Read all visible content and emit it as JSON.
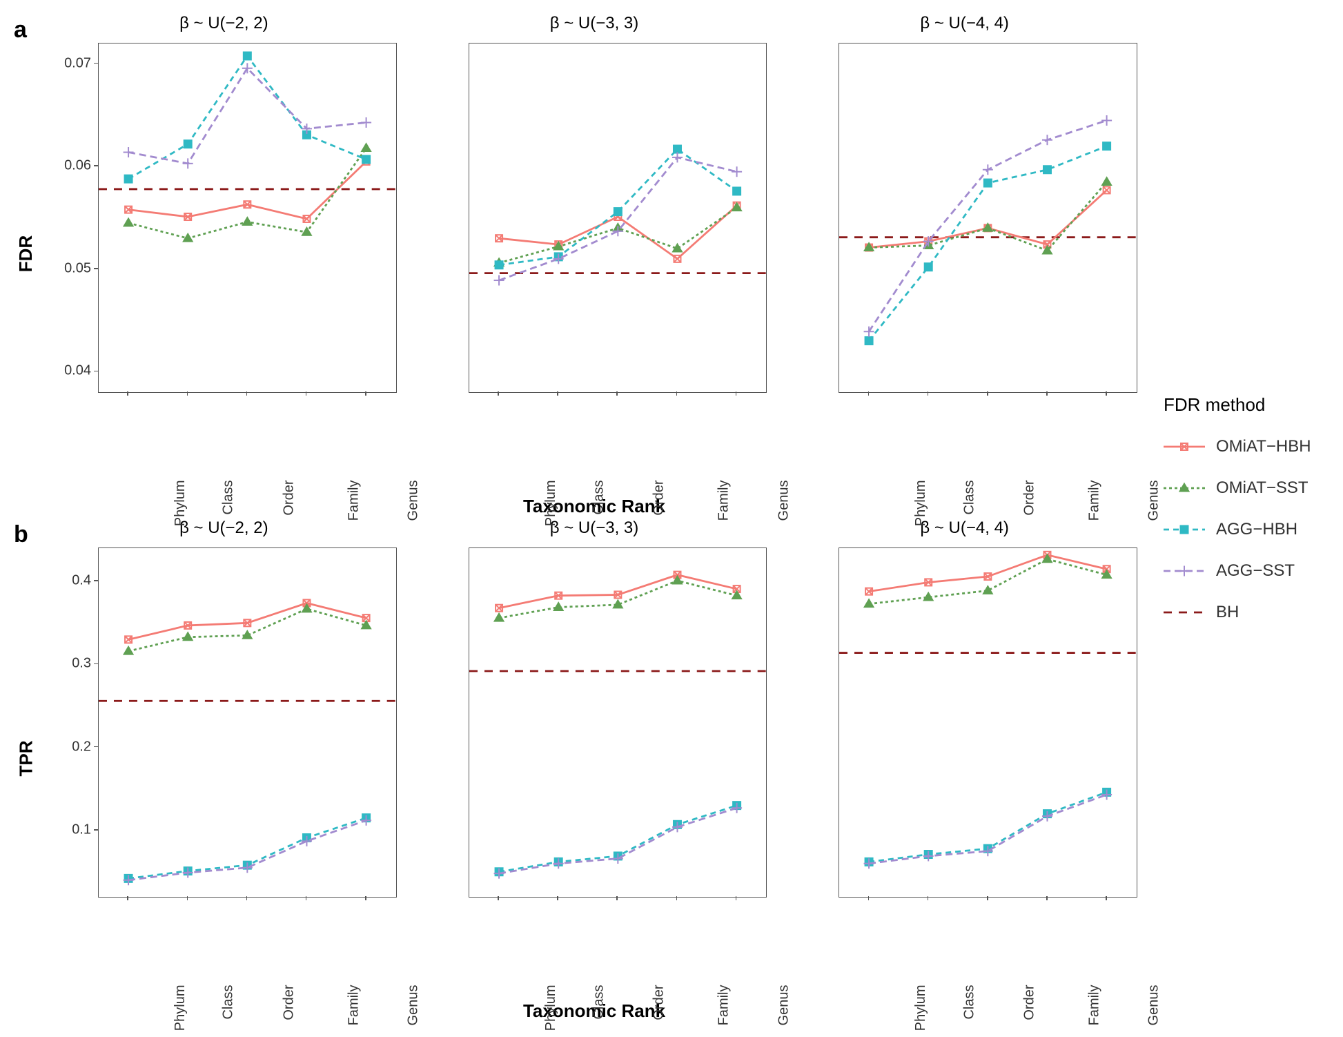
{
  "layout": {
    "rows": [
      "a",
      "b"
    ],
    "row_a_label": "a",
    "row_b_label": "b",
    "x_axis_label": "Taxonomic Rank",
    "y_axis_label_a": "FDR",
    "y_axis_label_b": "TPR",
    "panel_titles": [
      "β ~ U(−2, 2)",
      "β ~ U(−3, 3)",
      "β ~ U(−4, 4)"
    ],
    "x_categories": [
      "Phylum",
      "Class",
      "Order",
      "Family",
      "Genus"
    ]
  },
  "legend": {
    "title": "FDR method",
    "items": [
      {
        "key": "omiat_hbh",
        "label": "OMiAT−HBH",
        "color": "#f47b74",
        "dash": "none",
        "marker": "squarex",
        "marker_size": 10
      },
      {
        "key": "omiat_sst",
        "label": "OMiAT−SST",
        "color": "#5fa052",
        "dash": "4,4",
        "marker": "triangle",
        "marker_size": 11
      },
      {
        "key": "agg_hbh",
        "label": "AGG−HBH",
        "color": "#2fb9c4",
        "dash": "8,6",
        "marker": "square",
        "marker_size": 11
      },
      {
        "key": "agg_sst",
        "label": "AGG−SST",
        "color": "#a28bcf",
        "dash": "10,6",
        "marker": "plus",
        "marker_size": 12
      },
      {
        "key": "bh",
        "label": " BH",
        "color": "#8b1a1a",
        "dash": "12,10",
        "marker": "none",
        "marker_size": 0,
        "is_ref": true
      }
    ],
    "line_width": 2.8,
    "marker_stroke": 2
  },
  "panels_a": [
    {
      "ylim": [
        0.038,
        0.072
      ],
      "yticks": [
        0.04,
        0.05,
        0.06,
        0.07
      ],
      "bh": 0.0578,
      "series": {
        "omiat_hbh": [
          0.0558,
          0.0551,
          0.0563,
          0.0549,
          0.0605
        ],
        "omiat_sst": [
          0.0545,
          0.053,
          0.0546,
          0.0536,
          0.0618
        ],
        "agg_hbh": [
          0.0588,
          0.0622,
          0.0708,
          0.0631,
          0.0607
        ],
        "agg_sst": [
          0.0614,
          0.0603,
          0.0696,
          0.0637,
          0.0643
        ]
      }
    },
    {
      "ylim": [
        0.038,
        0.072
      ],
      "yticks": [
        0.04,
        0.05,
        0.06,
        0.07
      ],
      "bh": 0.0496,
      "series": {
        "omiat_hbh": [
          0.053,
          0.0524,
          0.0551,
          0.051,
          0.0562
        ],
        "omiat_sst": [
          0.0506,
          0.0522,
          0.054,
          0.052,
          0.056
        ],
        "agg_hbh": [
          0.0504,
          0.0512,
          0.0556,
          0.0617,
          0.0576
        ],
        "agg_sst": [
          0.0489,
          0.051,
          0.0537,
          0.0609,
          0.0595
        ]
      }
    },
    {
      "ylim": [
        0.038,
        0.072
      ],
      "yticks": [
        0.04,
        0.05,
        0.06,
        0.07
      ],
      "bh": 0.0531,
      "series": {
        "omiat_hbh": [
          0.0521,
          0.0527,
          0.054,
          0.0524,
          0.0577
        ],
        "omiat_sst": [
          0.0521,
          0.0523,
          0.054,
          0.0518,
          0.0585
        ],
        "agg_hbh": [
          0.043,
          0.0502,
          0.0584,
          0.0597,
          0.062
        ],
        "agg_sst": [
          0.0439,
          0.0527,
          0.0597,
          0.0626,
          0.0645
        ]
      }
    }
  ],
  "panels_b": [
    {
      "ylim": [
        0.02,
        0.44
      ],
      "yticks": [
        0.1,
        0.2,
        0.3,
        0.4
      ],
      "bh": 0.256,
      "series": {
        "omiat_hbh": [
          0.33,
          0.347,
          0.35,
          0.374,
          0.356
        ],
        "omiat_sst": [
          0.316,
          0.333,
          0.335,
          0.367,
          0.347
        ],
        "agg_hbh": [
          0.042,
          0.051,
          0.058,
          0.091,
          0.115
        ],
        "agg_sst": [
          0.04,
          0.049,
          0.055,
          0.087,
          0.112
        ]
      }
    },
    {
      "ylim": [
        0.02,
        0.44
      ],
      "yticks": [
        0.1,
        0.2,
        0.3,
        0.4
      ],
      "bh": 0.292,
      "series": {
        "omiat_hbh": [
          0.368,
          0.383,
          0.384,
          0.408,
          0.391
        ],
        "omiat_sst": [
          0.356,
          0.369,
          0.372,
          0.401,
          0.383
        ],
        "agg_hbh": [
          0.05,
          0.062,
          0.069,
          0.107,
          0.13
        ],
        "agg_sst": [
          0.048,
          0.06,
          0.066,
          0.104,
          0.127
        ]
      }
    },
    {
      "ylim": [
        0.02,
        0.44
      ],
      "yticks": [
        0.1,
        0.2,
        0.3,
        0.4
      ],
      "bh": 0.314,
      "series": {
        "omiat_hbh": [
          0.388,
          0.399,
          0.406,
          0.432,
          0.415
        ],
        "omiat_sst": [
          0.373,
          0.381,
          0.389,
          0.427,
          0.408
        ],
        "agg_hbh": [
          0.062,
          0.071,
          0.078,
          0.12,
          0.146
        ],
        "agg_sst": [
          0.06,
          0.069,
          0.075,
          0.117,
          0.143
        ]
      }
    }
  ],
  "style": {
    "background": "#ffffff",
    "border_color": "#555555",
    "tick_fontsize": 20,
    "axis_label_fontsize": 26,
    "panel_title_fontsize": 24,
    "row_label_fontsize": 34
  }
}
